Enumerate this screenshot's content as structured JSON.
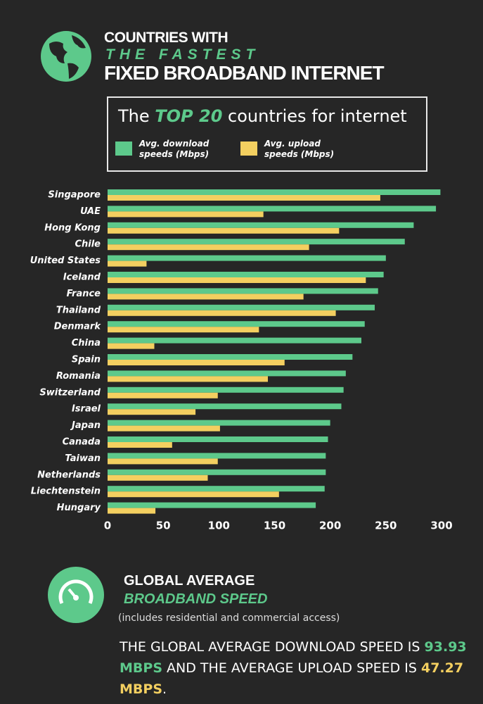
{
  "header": {
    "line1": "COUNTRIES WITH",
    "line2": "THE FASTEST",
    "line3": "FIXED BROADBAND INTERNET"
  },
  "legend_box": {
    "heading_start": "The",
    "heading_highlight": "TOP 20",
    "heading_end": "countries for internet"
  },
  "chart_data": {
    "type": "bar",
    "orientation": "horizontal",
    "categories": [
      "Singapore",
      "UAE",
      "Hong Kong",
      "Chile",
      "United States",
      "Iceland",
      "France",
      "Thailand",
      "Denmark",
      "China",
      "Spain",
      "Romania",
      "Switzerland",
      "Israel",
      "Japan",
      "Canada",
      "Taiwan",
      "Netherlands",
      "Liechtenstein",
      "Hungary"
    ],
    "series": [
      {
        "name": "Avg. download speeds (Mbps)",
        "color": "#5dc98b",
        "values": [
          299,
          295,
          275,
          267,
          250,
          248,
          243,
          240,
          231,
          228,
          220,
          214,
          212,
          210,
          200,
          198,
          196,
          196,
          195,
          187
        ]
      },
      {
        "name": "Avg. upload speeds (Mbps)",
        "color": "#f3cf60",
        "values": [
          245,
          140,
          208,
          181,
          35,
          232,
          176,
          205,
          136,
          42,
          159,
          144,
          99,
          79,
          101,
          58,
          99,
          90,
          154,
          43
        ]
      }
    ],
    "xlim": [
      0,
      300
    ],
    "xticks": [
      0,
      50,
      100,
      150,
      200,
      250,
      300
    ],
    "grid": false
  },
  "summary": {
    "title1": "GLOBAL AVERAGE",
    "title2": "BROADBAND SPEED",
    "note": "(includes residential and commercial access)",
    "text_start": "THE GLOBAL AVERAGE DOWNLOAD SPEED IS",
    "download": "93.93 MBPS",
    "text_mid": "AND THE AVERAGE UPLOAD SPEED IS",
    "upload": "47.27 MBPS",
    "text_end": "."
  }
}
